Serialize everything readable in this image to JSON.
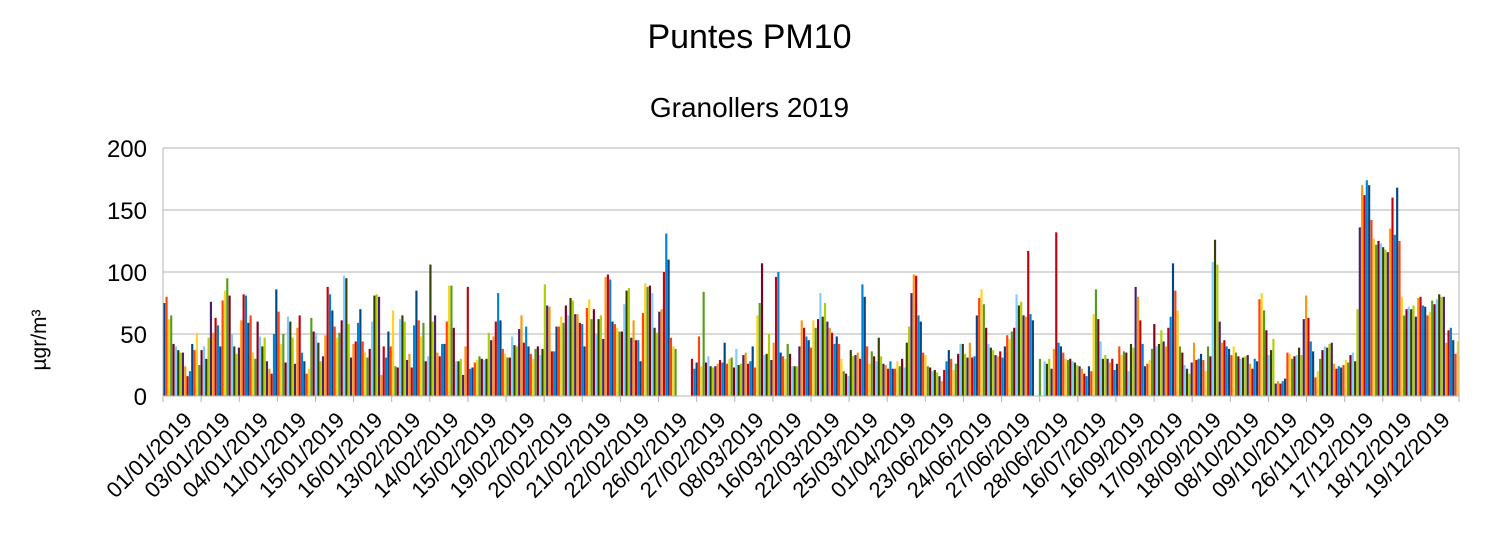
{
  "chart_data": {
    "type": "bar",
    "title": "Puntes PM10",
    "subtitle": "Granollers 2019",
    "ylabel": "µgr/m³",
    "xlabel": "",
    "ylim": [
      0,
      200
    ],
    "yticks": [
      0,
      50,
      100,
      150,
      200
    ],
    "grid": true,
    "legend": "none",
    "tick_labels": [
      "01/01/2019",
      "03/01/2019",
      "04/01/2019",
      "11/01/2019",
      "15/01/2019",
      "16/01/2019",
      "13/02/2019",
      "14/02/2019",
      "15/02/2019",
      "19/02/2019",
      "20/02/2019",
      "21/02/2019",
      "22/02/2019",
      "26/02/2019",
      "27/02/2019",
      "08/03/2019",
      "16/03/2019",
      "22/03/2019",
      "25/03/2019",
      "01/04/2019",
      "23/06/2019",
      "24/06/2019",
      "27/06/2019",
      "28/06/2019",
      "16/07/2019",
      "16/09/2019",
      "17/09/2019",
      "18/09/2019",
      "08/10/2019",
      "09/10/2019",
      "26/11/2019",
      "17/12/2019",
      "18/12/2019",
      "19/12/2019"
    ],
    "bar_colors": [
      "#004586",
      "#ff420e",
      "#ffd320",
      "#579d1c",
      "#7e0021",
      "#83caff",
      "#314004",
      "#aecf00",
      "#4b1f6f",
      "#ff950e",
      "#c5000b",
      "#0084d1"
    ],
    "values": [
      75,
      80,
      62,
      65,
      42,
      40,
      37,
      35,
      35,
      24,
      16,
      20,
      42,
      37,
      51,
      25,
      37,
      40,
      30,
      47,
      76,
      51,
      63,
      57,
      40,
      77,
      85,
      95,
      81,
      50,
      40,
      34,
      39,
      61,
      82,
      81,
      59,
      65,
      35,
      30,
      60,
      48,
      40,
      47,
      28,
      22,
      18,
      50,
      86,
      68,
      42,
      50,
      27,
      64,
      60,
      47,
      26,
      55,
      65,
      35,
      28,
      18,
      22,
      63,
      52,
      51,
      43,
      28,
      32,
      49,
      88,
      82,
      69,
      56,
      47,
      51,
      61,
      97,
      95,
      58,
      31,
      42,
      44,
      59,
      70,
      44,
      35,
      31,
      38,
      60,
      81,
      82,
      80,
      17,
      40,
      31,
      52,
      40,
      69,
      24,
      23,
      62,
      65,
      60,
      29,
      34,
      23,
      57,
      85,
      61,
      48,
      59,
      28,
      32,
      106,
      60,
      65,
      35,
      32,
      42,
      42,
      60,
      89,
      89,
      55,
      28,
      28,
      30,
      17,
      40,
      88,
      22,
      23,
      27,
      29,
      32,
      30,
      29,
      30,
      51,
      45,
      48,
      60,
      83,
      61,
      38,
      34,
      31,
      31,
      48,
      41,
      40,
      54,
      65,
      43,
      56,
      40,
      34,
      30,
      38,
      40,
      33,
      38,
      90,
      73,
      72,
      36,
      36,
      56,
      56,
      64,
      59,
      73,
      65,
      79,
      77,
      66,
      66,
      59,
      58,
      40,
      71,
      78,
      62,
      70,
      50,
      62,
      65,
      46,
      96,
      98,
      94,
      60,
      58,
      55,
      52,
      52,
      74,
      85,
      87,
      47,
      61,
      45,
      45,
      28,
      67,
      91,
      88,
      89,
      83,
      55,
      51,
      68,
      70,
      100,
      131,
      110,
      47,
      40,
      38,
      null,
      null,
      null,
      null,
      null,
      null,
      30,
      22,
      27,
      48,
      24,
      84,
      27,
      32,
      24,
      23,
      24,
      26,
      29,
      27,
      43,
      26,
      30,
      31,
      23,
      38,
      25,
      26,
      33,
      35,
      26,
      28,
      40,
      23,
      65,
      75,
      107,
      33,
      34,
      50,
      29,
      43,
      96,
      100,
      35,
      32,
      30,
      42,
      34,
      24,
      24,
      24,
      40,
      61,
      55,
      48,
      45,
      39,
      61,
      55,
      62,
      83,
      64,
      75,
      60,
      55,
      51,
      42,
      48,
      42,
      30,
      20,
      18,
      16,
      37,
      32,
      33,
      35,
      30,
      90,
      80,
      40,
      26,
      36,
      32,
      28,
      47,
      32,
      26,
      25,
      22,
      28,
      22,
      22,
      28,
      24,
      30,
      23,
      43,
      56,
      83,
      98,
      97,
      65,
      60,
      35,
      33,
      24,
      23,
      20,
      21,
      19,
      16,
      12,
      21,
      28,
      37,
      30,
      21,
      26,
      34,
      42,
      42,
      34,
      31,
      43,
      31,
      32,
      65,
      79,
      86,
      74,
      55,
      42,
      39,
      37,
      33,
      32,
      36,
      31,
      40,
      49,
      46,
      52,
      55,
      82,
      73,
      76,
      65,
      64,
      117,
      66,
      61,
      null,
      null,
      30,
      null,
      28,
      26,
      30,
      22,
      38,
      132,
      43,
      40,
      35,
      30,
      29,
      30,
      28,
      27,
      25,
      24,
      22,
      18,
      16,
      24,
      20,
      66,
      86,
      62,
      44,
      30,
      33,
      30,
      27,
      30,
      21,
      26,
      40,
      33,
      36,
      35,
      20,
      42,
      39,
      88,
      80,
      61,
      42,
      24,
      26,
      29,
      38,
      58,
      40,
      42,
      53,
      44,
      40,
      55,
      64,
      107,
      85,
      69,
      40,
      35,
      25,
      22,
      18,
      27,
      43,
      29,
      30,
      34,
      29,
      20,
      40,
      32,
      108,
      126,
      106,
      60,
      43,
      45,
      40,
      38,
      33,
      40,
      35,
      32,
      30,
      31,
      32,
      33,
      26,
      22,
      30,
      28,
      78,
      83,
      69,
      53,
      33,
      37,
      46,
      10,
      12,
      10,
      12,
      14,
      35,
      34,
      30,
      32,
      33,
      39,
      33,
      62,
      81,
      63,
      44,
      36,
      15,
      20,
      30,
      37,
      40,
      39,
      42,
      43,
      26,
      22,
      24,
      23,
      25,
      29,
      27,
      33,
      35,
      28,
      70,
      136,
      170,
      162,
      174,
      170,
      142,
      127,
      122,
      125,
      123,
      120,
      118,
      116,
      135,
      160,
      130,
      168,
      125,
      80,
      65,
      70,
      72,
      70,
      73,
      64,
      79,
      80,
      73,
      72,
      65,
      68,
      77,
      74,
      78,
      82,
      80,
      80,
      43,
      53,
      55,
      45,
      34,
      44
    ]
  }
}
